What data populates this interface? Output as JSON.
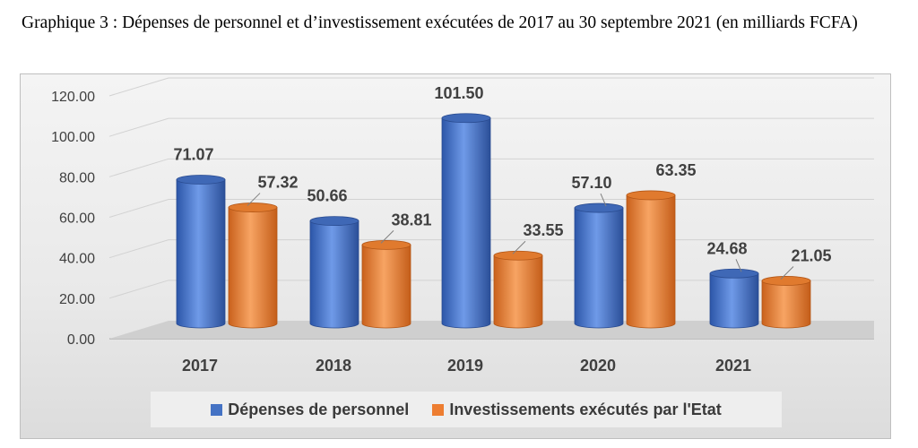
{
  "title": "Graphique 3 :  Dépenses de personnel et d’investissement exécutées de 2017 au 30 septembre 2021 (en milliards FCFA)",
  "colors": {
    "series1": "#4472C4",
    "series2": "#ED7D31"
  },
  "chart_data": {
    "type": "bar",
    "categories": [
      "2017",
      "2018",
      "2019",
      "2020",
      "2021"
    ],
    "series": [
      {
        "name": "Dépenses de personnel",
        "values": [
          71.07,
          50.66,
          101.5,
          57.1,
          24.68
        ],
        "labels": [
          "71.07",
          "50.66",
          "101.50",
          "57.10",
          "24.68"
        ]
      },
      {
        "name": "Investissements exécutés par l'Etat",
        "values": [
          57.32,
          38.81,
          33.55,
          63.35,
          21.05
        ],
        "labels": [
          "57.32",
          "38.81",
          "33.55",
          "63.35",
          "21.05"
        ]
      }
    ],
    "yticks": [
      "0.00",
      "20.00",
      "40.00",
      "60.00",
      "80.00",
      "100.00",
      "120.00"
    ],
    "ylim": [
      0,
      120
    ],
    "legend_position": "bottom",
    "grid": true
  }
}
